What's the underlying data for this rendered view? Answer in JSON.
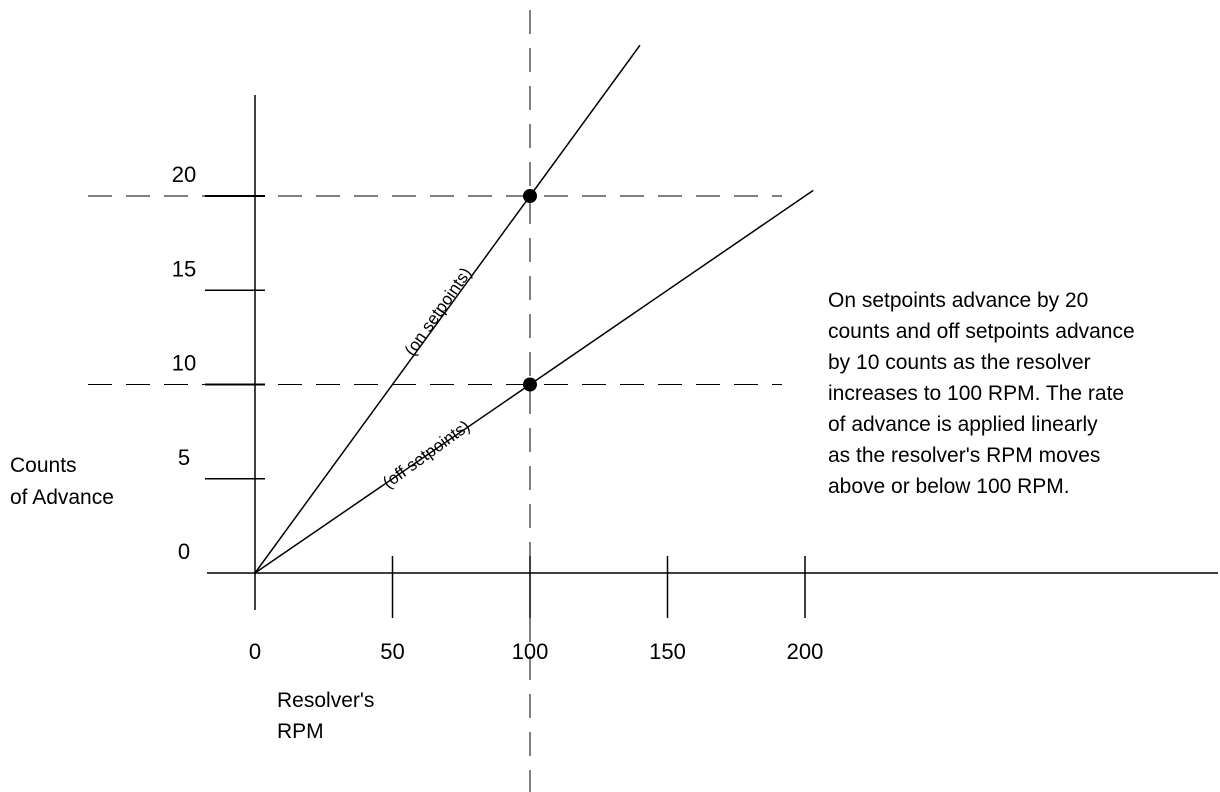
{
  "chart_data": {
    "type": "line",
    "title": "",
    "xlabel": [
      "Resolver's",
      "RPM"
    ],
    "ylabel": [
      "Counts",
      "of Advance"
    ],
    "x_ticks": [
      0,
      50,
      100,
      150,
      200
    ],
    "y_ticks": [
      0,
      5,
      10,
      15,
      20
    ],
    "xlim": [
      0,
      350
    ],
    "ylim": [
      0,
      20
    ],
    "grid": false,
    "series": [
      {
        "name": "(on setpoints)",
        "x": [
          0,
          100,
          140
        ],
        "y": [
          0,
          20,
          28
        ]
      },
      {
        "name": "(off setpoints)",
        "x": [
          0,
          100,
          203
        ],
        "y": [
          0,
          10,
          20.3
        ]
      }
    ],
    "markers": [
      {
        "x": 100,
        "y": 20
      },
      {
        "x": 100,
        "y": 10
      }
    ],
    "reference_lines": [
      {
        "orientation": "vertical",
        "value": 100
      },
      {
        "orientation": "horizontal",
        "value": 20
      },
      {
        "orientation": "horizontal",
        "value": 10
      }
    ],
    "annotation": [
      "On setpoints advance by 20",
      "counts and off setpoints advance",
      "by 10 counts as the resolver",
      "increases to 100 RPM. The rate",
      "of advance is applied linearly",
      "as the resolver's RPM moves",
      "above or below 100 RPM."
    ]
  }
}
